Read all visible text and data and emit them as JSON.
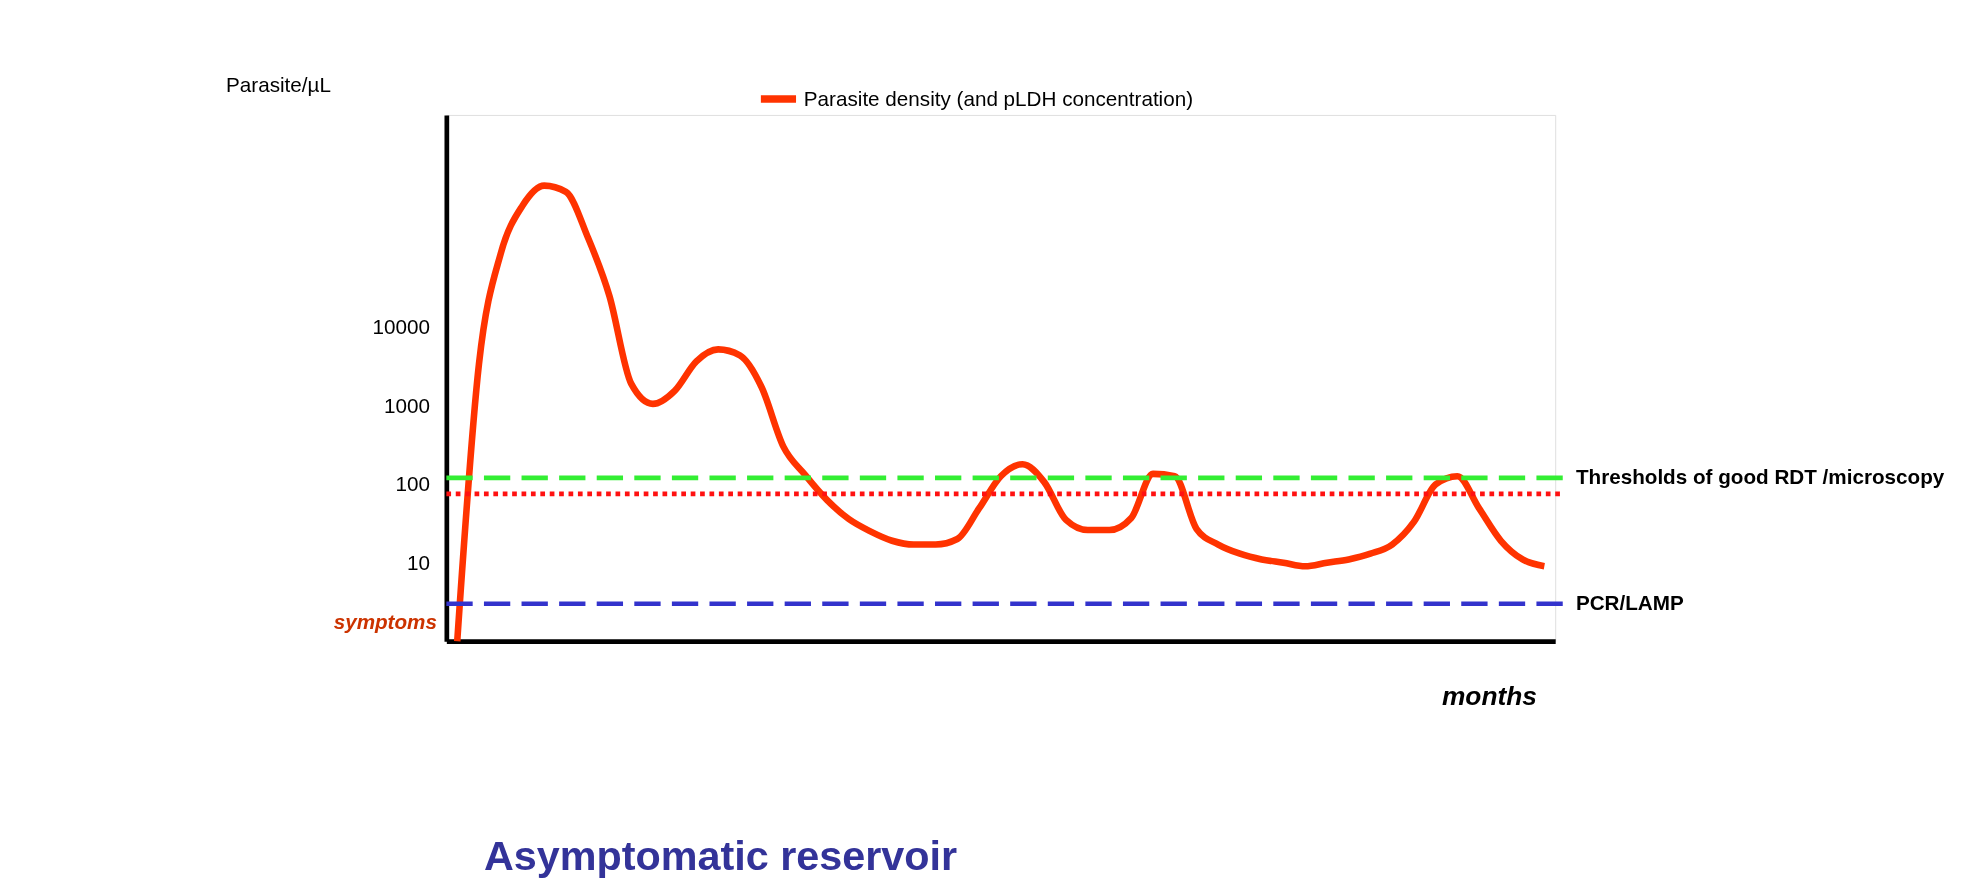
{
  "chart_data": {
    "type": "line",
    "ylabel": "Parasite/µL",
    "xlabel": "months",
    "categories": [
      null,
      null,
      null,
      null,
      null,
      null,
      null,
      null,
      null,
      null,
      null,
      null,
      null,
      null,
      null,
      null,
      null,
      null,
      null,
      null,
      null,
      null,
      null,
      null,
      null,
      null,
      null,
      null,
      null,
      null,
      null,
      null,
      null,
      null,
      null,
      null,
      null,
      null,
      null,
      null,
      null,
      null,
      null,
      null,
      null,
      null,
      null,
      null,
      null,
      null,
      null
    ],
    "series": [
      {
        "name": "Parasite density (and pLDH concentration)",
        "color": "#ff3300",
        "values": [
          1,
          3400,
          86000,
          350000,
          630000,
          525000,
          140000,
          24800,
          1900,
          1050,
          1540,
          3660,
          5190,
          4360,
          1710,
          300,
          131,
          63,
          36,
          25,
          19,
          17,
          17,
          20,
          49,
          126,
          179,
          106,
          35,
          26,
          26,
          37,
          135,
          126,
          27,
          17,
          13,
          11,
          10,
          9,
          10,
          11,
          13,
          17,
          33,
          99,
          126,
          49,
          19,
          11,
          9
        ]
      }
    ],
    "log": "y",
    "ylim": [
      1,
      5000000
    ],
    "yticks": [
      10,
      100,
      1000,
      10000
    ],
    "tick_labels": "y",
    "grid": false,
    "legend": "top",
    "ref_lines": [
      {
        "axis": "y",
        "value": 120,
        "label": "Thresholds of good RDT /microscopy",
        "color": "#33ee33",
        "line_style": "dashed"
      },
      {
        "axis": "y",
        "value": 75,
        "color": "#ff1111",
        "line_style": "dotted"
      },
      {
        "axis": "y",
        "value": 3,
        "label": "PCR/LAMP",
        "color": "#3333cc",
        "line_style": "dashed"
      }
    ],
    "annotations": [
      "symptoms",
      "Asymptomatic reservoir"
    ]
  }
}
